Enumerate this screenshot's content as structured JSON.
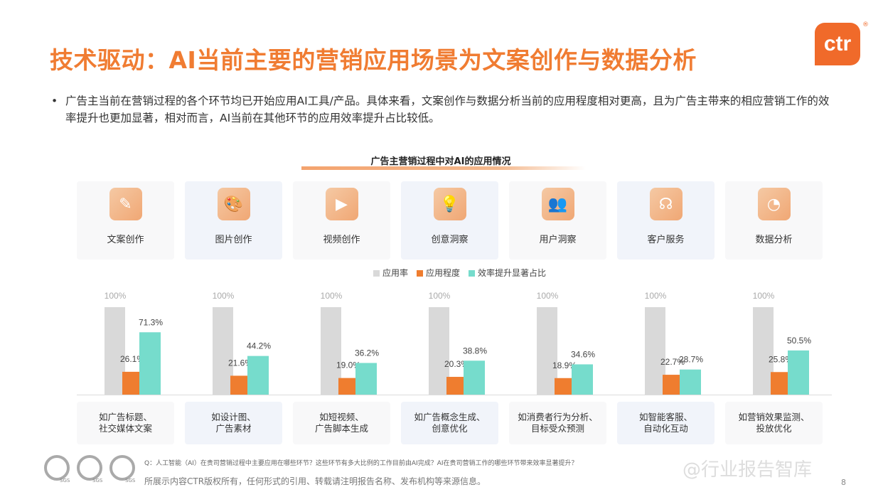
{
  "title": "技术驱动：AI当前主要的营销应用场景为文案创作与数据分析",
  "logo": "ctr",
  "bullet": "广告主当前在营销过程的各个环节均已开始应用AI工具/产品。具体来看，文案创作与数据分析当前的应用程度相对更高，且为广告主带来的相应营销工作的效率提升也更加显著，相对而言，AI当前在其他环节的应用效率提升占比较低。",
  "colors": {
    "accent": "#f07c32",
    "gray": "#d9d9d9",
    "orange": "#ef7d2f",
    "teal": "#76dccc"
  },
  "chart_data": {
    "type": "bar",
    "title": "广告主营销过程中对AI的应用情况",
    "legend_position": "top",
    "ylim": [
      0,
      100
    ],
    "categories": [
      "文案创作",
      "图片创作",
      "视频创作",
      "创意洞察",
      "用户洞察",
      "客户服务",
      "数据分析"
    ],
    "icons": [
      "document-pen-icon",
      "palette-icon",
      "video-play-icon",
      "lightbulb-head-icon",
      "users-icon",
      "headset-agent-icon",
      "chart-dashboard-icon"
    ],
    "examples": [
      "如广告标题、\n社交媒体文案",
      "如设计图、\n广告素材",
      "如短视频、\n广告脚本生成",
      "如广告概念生成、\n创意优化",
      "如消费者行为分析、\n目标受众预测",
      "如智能客服、\n自动化互动",
      "如营销效果监测、\n投放优化"
    ],
    "series": [
      {
        "name": "应用率",
        "values": [
          100,
          100,
          100,
          100,
          100,
          100,
          100
        ],
        "labels": [
          "100%",
          "100%",
          "100%",
          "100%",
          "100%",
          "100%",
          "100%"
        ]
      },
      {
        "name": "应用程度",
        "values": [
          26.1,
          21.6,
          19.0,
          20.3,
          18.9,
          22.7,
          25.8
        ],
        "labels": [
          "26.1%",
          "21.6%",
          "19.0%",
          "20.3%",
          "18.9%",
          "22.7%",
          "25.8%"
        ]
      },
      {
        "name": "效率提升显著占比",
        "values": [
          71.3,
          44.2,
          36.2,
          38.8,
          34.6,
          28.7,
          50.5
        ],
        "labels": [
          "71.3%",
          "44.2%",
          "36.2%",
          "38.8%",
          "34.6%",
          "28.7%",
          "50.5%"
        ]
      }
    ]
  },
  "footer": {
    "question": "Q：人工智能（AI）在贵司营销过程中主要应用在哪些环节？这些环节有多大比例的工作目前由AI完成？AI在贵司营销工作的哪些环节带来效率显著提升？",
    "copyright": "所展示内容CTR版权所有，任何形式的引用、转载请注明报告名称、发布机构等来源信息。",
    "sgs": "SGS",
    "watermark": "@行业报告智库",
    "page": "8"
  }
}
